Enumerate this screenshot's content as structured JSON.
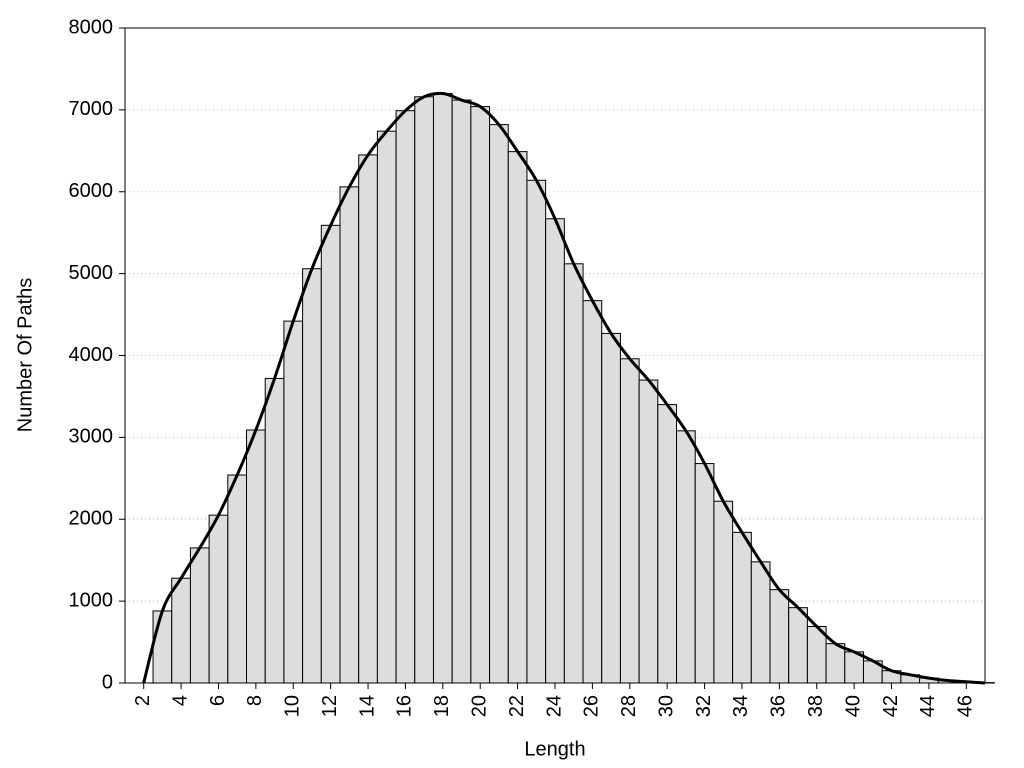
{
  "chart_data": {
    "type": "bar",
    "x_label": "Length",
    "y_label": "Number Of Paths",
    "x": [
      2,
      3,
      4,
      5,
      6,
      7,
      8,
      9,
      10,
      11,
      12,
      13,
      14,
      15,
      16,
      17,
      18,
      19,
      20,
      21,
      22,
      23,
      24,
      25,
      26,
      27,
      28,
      29,
      30,
      31,
      32,
      33,
      34,
      35,
      36,
      37,
      38,
      39,
      40,
      41,
      42,
      43,
      44,
      45,
      46,
      47
    ],
    "series": [
      {
        "type": "bar",
        "color": "#dddddd",
        "values": [
          0,
          880,
          1280,
          1650,
          2050,
          2540,
          3090,
          3720,
          4420,
          5060,
          5590,
          6060,
          6450,
          6740,
          6990,
          7160,
          7200,
          7120,
          7040,
          6820,
          6490,
          6140,
          5670,
          5120,
          4670,
          4270,
          3960,
          3700,
          3400,
          3080,
          2680,
          2220,
          1840,
          1480,
          1140,
          920,
          690,
          480,
          380,
          270,
          150,
          100,
          60,
          30,
          15,
          5
        ]
      },
      {
        "type": "line",
        "color": "#000000",
        "values": [
          0,
          880,
          1280,
          1650,
          2050,
          2540,
          3090,
          3720,
          4420,
          5060,
          5590,
          6060,
          6450,
          6740,
          6990,
          7160,
          7200,
          7120,
          7040,
          6820,
          6490,
          6140,
          5670,
          5120,
          4670,
          4270,
          3960,
          3700,
          3400,
          3080,
          2680,
          2220,
          1840,
          1480,
          1140,
          920,
          690,
          480,
          380,
          270,
          150,
          100,
          60,
          30,
          15,
          0
        ]
      }
    ],
    "xlim": [
      1,
      47
    ],
    "ylim": [
      0,
      8000
    ],
    "xticks": [
      2,
      4,
      6,
      8,
      10,
      12,
      14,
      16,
      18,
      20,
      22,
      24,
      26,
      28,
      30,
      32,
      34,
      36,
      38,
      40,
      42,
      44,
      46
    ],
    "yticks": [
      0,
      1000,
      2000,
      3000,
      4000,
      5000,
      6000,
      7000,
      8000
    ],
    "grid": true
  }
}
